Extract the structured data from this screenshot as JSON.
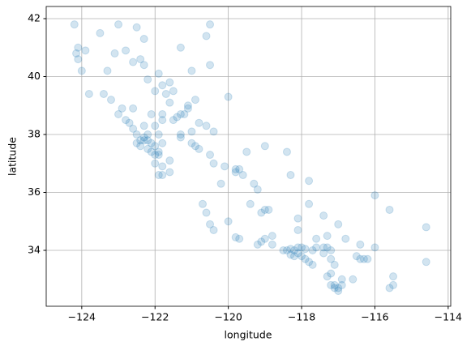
{
  "chart_data": {
    "type": "scatter",
    "xlabel": "longitude",
    "ylabel": "latitude",
    "color": "#1f77b4",
    "alpha": 0.2,
    "grid": true,
    "xlim": [
      -124.97,
      -113.93
    ],
    "ylim": [
      32.07,
      42.42
    ],
    "xticks": [
      {
        "value": -124,
        "label": "−124"
      },
      {
        "value": -122,
        "label": "−122"
      },
      {
        "value": -120,
        "label": "−120"
      },
      {
        "value": -118,
        "label": "−118"
      },
      {
        "value": -116,
        "label": "−116"
      },
      {
        "value": -114,
        "label": "−114"
      }
    ],
    "yticks": [
      34,
      36,
      38,
      40,
      42
    ],
    "x": [
      -124.2,
      -124.1,
      -124.15,
      -124.1,
      -123.9,
      -123.5,
      -122.5,
      -122.3,
      -122.6,
      -122.4,
      -122.3,
      -121.9,
      -121.6,
      -121.8,
      -122.2,
      -123.4,
      -123.8,
      -122.0,
      -121.5,
      -120.9,
      -121.1,
      -120.6,
      -120.5,
      -121.0,
      -120.0,
      -123.0,
      -122.8,
      -123.3,
      -124.0,
      -121.3,
      -120.5,
      -123.1,
      -122.4,
      -122.3,
      -122.2,
      -122.1,
      -122.0,
      -121.9,
      -121.9,
      -122.0,
      -122.1,
      -122.2,
      -122.4,
      -122.5,
      -122.3,
      -122.2,
      -122.5,
      -122.6,
      -122.7,
      -122.8,
      -122.3,
      -122.0,
      -121.9,
      -121.8,
      -122.0,
      -121.8,
      -121.8,
      -121.6,
      -121.9,
      -121.6,
      -122.9,
      -123.2,
      -122.6,
      -123.0,
      -122.1,
      -121.8,
      -121.4,
      -121.3,
      -121.5,
      -121.2,
      -121.1,
      -121.6,
      -121.7,
      -121.8,
      -121.3,
      -121.3,
      -121.0,
      -120.9,
      -120.5,
      -120.8,
      -120.4,
      -120.1,
      -120.6,
      -120.4,
      -120.8,
      -121.0,
      -119.8,
      -119.7,
      -119.8,
      -119.6,
      -119.3,
      -119.2,
      -119.0,
      -119.1,
      -118.9,
      -119.4,
      -120.2,
      -120.7,
      -120.6,
      -120.5,
      -120.4,
      -119.7,
      -119.8,
      -119.2,
      -119.1,
      -118.8,
      -120.0,
      -119.5,
      -119.0,
      -118.4,
      -118.3,
      -117.8,
      -118.1,
      -118.1,
      -117.3,
      -117.6,
      -118.5,
      -118.4,
      -118.3,
      -118.2,
      -118.1,
      -118.2,
      -118.3,
      -118.0,
      -117.9,
      -117.8,
      -117.7,
      -118.1,
      -118.0,
      -117.9,
      -117.7,
      -117.6,
      -117.4,
      -117.3,
      -117.2,
      -117.4,
      -117.2,
      -117.1,
      -117.2,
      -117.3,
      -117.1,
      -117.1,
      -117.0,
      -117.0,
      -116.9,
      -117.2,
      -116.9,
      -116.5,
      -116.4,
      -116.3,
      -116.2,
      -115.5,
      -115.6,
      -115.5,
      -114.6,
      -114.6,
      -116.8,
      -116.4,
      -116.0,
      -116.6,
      -116.0,
      -115.6,
      -117.0,
      -117.4,
      -117.8,
      -118.8,
      -119.0
    ],
    "y": [
      41.8,
      41.0,
      40.8,
      40.6,
      40.9,
      41.5,
      41.7,
      41.3,
      40.5,
      40.6,
      40.4,
      40.1,
      39.8,
      39.7,
      39.9,
      39.4,
      39.4,
      39.5,
      39.5,
      39.2,
      39.0,
      41.4,
      40.4,
      40.2,
      39.3,
      41.8,
      40.9,
      40.2,
      40.2,
      41.0,
      41.8,
      40.8,
      37.8,
      37.8,
      37.8,
      37.7,
      37.6,
      37.4,
      37.3,
      37.3,
      37.4,
      37.5,
      37.6,
      37.7,
      37.9,
      38.0,
      38.0,
      38.2,
      38.4,
      38.5,
      38.3,
      38.3,
      38.0,
      37.7,
      37.0,
      36.9,
      36.6,
      36.7,
      36.6,
      37.1,
      38.9,
      39.2,
      38.9,
      38.7,
      38.7,
      38.5,
      38.6,
      38.7,
      38.5,
      38.7,
      38.9,
      39.1,
      39.4,
      38.7,
      38.0,
      37.9,
      37.7,
      37.6,
      37.3,
      37.5,
      37.0,
      36.9,
      38.3,
      38.1,
      38.4,
      38.1,
      36.8,
      36.8,
      36.7,
      36.6,
      36.3,
      36.1,
      35.4,
      35.3,
      35.4,
      35.6,
      36.3,
      35.6,
      35.3,
      34.9,
      34.7,
      34.4,
      34.45,
      34.2,
      34.3,
      34.2,
      35.0,
      37.4,
      37.6,
      37.4,
      36.6,
      35.6,
      35.1,
      34.7,
      34.5,
      34.4,
      34.0,
      34.0,
      34.05,
      34.0,
      33.9,
      33.8,
      33.85,
      33.8,
      33.7,
      33.6,
      33.5,
      34.1,
      34.1,
      34.05,
      34.0,
      34.1,
      34.1,
      34.1,
      34.0,
      33.9,
      33.7,
      33.5,
      33.2,
      33.1,
      32.8,
      32.7,
      32.7,
      32.6,
      32.8,
      32.8,
      33.0,
      33.8,
      33.7,
      33.7,
      33.7,
      32.8,
      32.7,
      33.1,
      33.6,
      34.8,
      34.4,
      34.2,
      34.1,
      33.0,
      35.9,
      35.4,
      34.9,
      35.2,
      36.4,
      34.5,
      34.4
    ]
  }
}
